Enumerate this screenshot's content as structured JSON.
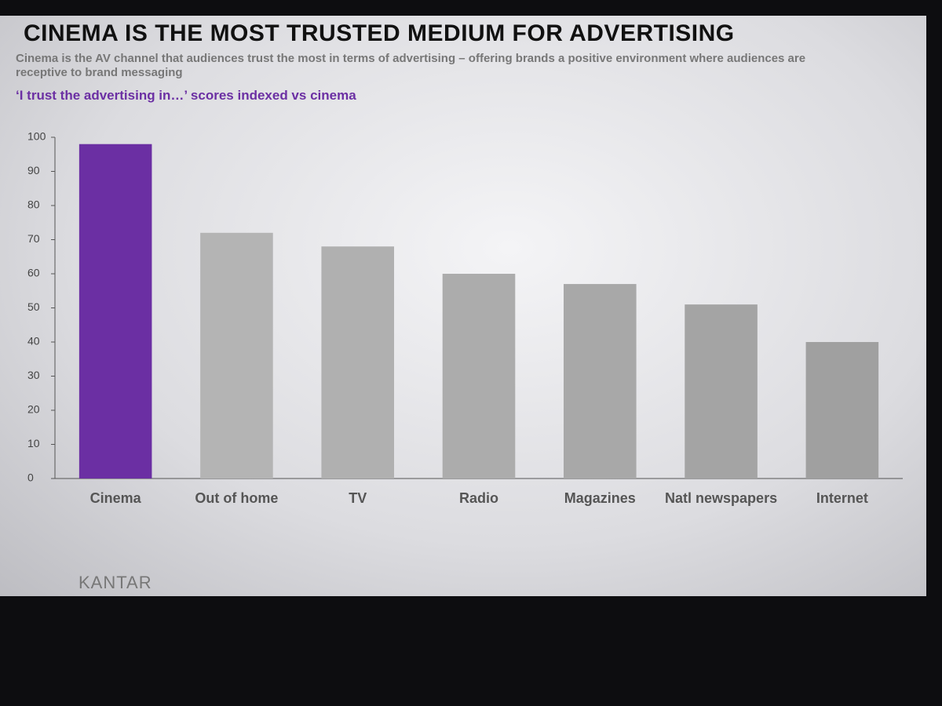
{
  "chart_data": {
    "type": "bar",
    "title": "CINEMA IS THE MOST TRUSTED MEDIUM FOR  ADVERTISING",
    "subtitle": "Cinema is the AV channel that audiences trust the most in terms of advertising – offering brands a positive environment where audiences are receptive to brand messaging",
    "chart_title": "‘I trust the advertising in…’ scores indexed vs cinema",
    "categories": [
      "Cinema",
      "Out of home",
      "TV",
      "Radio",
      "Magazines",
      "Natl newspapers",
      "Internet"
    ],
    "values": [
      98,
      72,
      68,
      60,
      57,
      51,
      40
    ],
    "colors": [
      "#6b2fa3",
      "#b4b4b4",
      "#b0b0b0",
      "#acacac",
      "#a8a8a8",
      "#a4a4a4",
      "#a0a0a0"
    ],
    "ylim": [
      0,
      100
    ],
    "yticks": [
      0,
      10,
      20,
      30,
      40,
      50,
      60,
      70,
      80,
      90,
      100
    ]
  },
  "footer": {
    "logo": "KANTAR"
  }
}
